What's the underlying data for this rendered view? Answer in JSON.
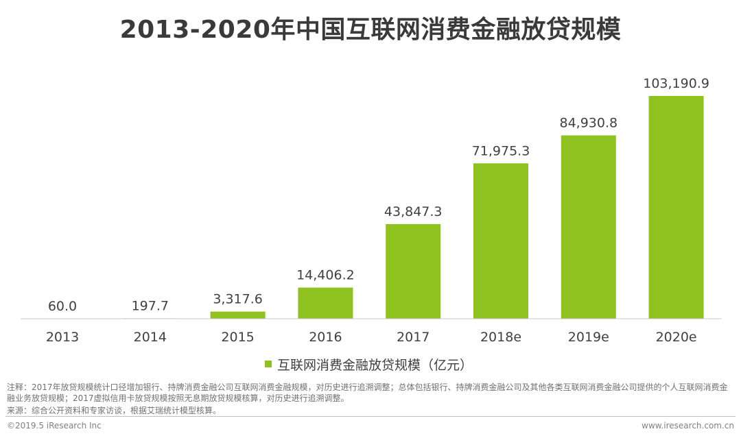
{
  "chart_data": {
    "type": "bar",
    "title": "2013-2020年中国互联网消费金融放贷规模",
    "categories": [
      "2013",
      "2014",
      "2015",
      "2016",
      "2017",
      "2018e",
      "2019e",
      "2020e"
    ],
    "series": [
      {
        "name": "互联网消费金融放贷规模（亿元）",
        "values": [
          60.0,
          197.7,
          3317.6,
          14406.2,
          43847.3,
          71975.3,
          84930.8,
          103190.9
        ],
        "labels": [
          "60.0",
          "197.7",
          "3,317.6",
          "14,406.2",
          "43,847.3",
          "71,975.3",
          "84,930.8",
          "103,190.9"
        ]
      }
    ],
    "xlabel": "",
    "ylabel": "",
    "ylim": [
      0,
      103190.9
    ],
    "grid": false,
    "legend_position": "bottom-center"
  },
  "colors": {
    "bar": "#8dc21f",
    "axis": "#c8c8c8",
    "title": "#3a3a3a"
  },
  "footer": {
    "note": "注释：2017年放贷规模统计口径增加银行、持牌消费金融公司互联网消费金融规模，对历史进行追溯调整；总体包括银行、持牌消费金融公司及其他各类互联网消费金融公司提供的个人互联网消费金融业务放贷规模；2017虚拟信用卡放贷规模按照无息期放贷规模核算，对历史进行追溯调整。",
    "source": "来源：综合公开资料和专家访谈，根据艾瑞统计模型核算。",
    "copyright": "©2019.5 iResearch Inc",
    "website": "www.iresearch.com.cn"
  }
}
